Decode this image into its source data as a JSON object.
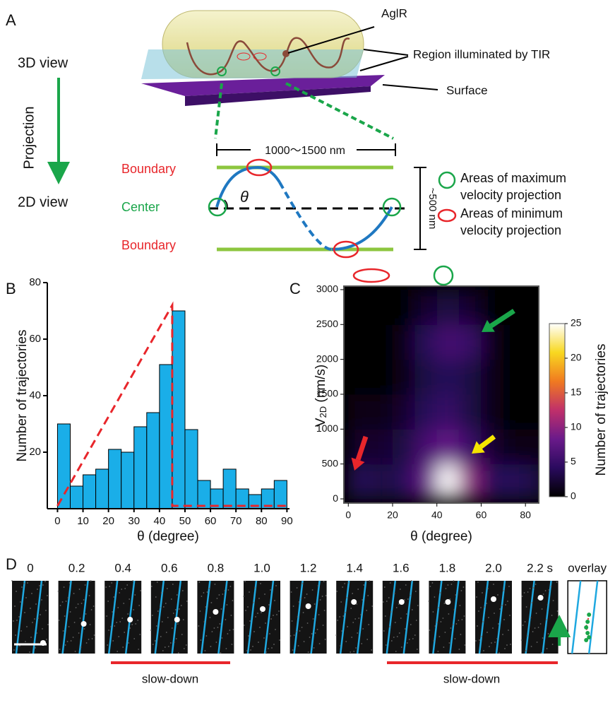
{
  "panel_a": {
    "label": "A",
    "view_3d": "3D view",
    "projection": "Projection",
    "view_2d": "2D view",
    "aglr": "AglR",
    "tir": "Region illuminated by TIR",
    "surface": "Surface",
    "width": "1000～1500 nm",
    "boundary_top": "Boundary",
    "center": "Center",
    "boundary_bottom": "Boundary",
    "theta": "θ",
    "height": "~500 nm",
    "legend": [
      {
        "lines": [
          "Areas of maximum",
          "velocity projection"
        ]
      },
      {
        "lines": [
          "Areas of minimum",
          "velocity projection"
        ]
      }
    ]
  },
  "chart_data": [
    {
      "type": "histogram",
      "panel": "B",
      "y_label": "Number of trajectories",
      "x_label": "θ (degree)",
      "bins": [
        0,
        5,
        10,
        15,
        20,
        25,
        30,
        35,
        40,
        45,
        50,
        55,
        60,
        65,
        70,
        75,
        80,
        85,
        90
      ],
      "values": [
        30,
        8,
        12,
        14,
        21,
        20,
        29,
        34,
        51,
        70,
        28,
        10,
        7,
        14,
        7,
        5,
        7,
        10
      ],
      "color": "#1aaee8",
      "xlim": [
        -4,
        91
      ],
      "xticks": [
        0,
        10,
        20,
        30,
        40,
        50,
        60,
        70,
        80,
        90
      ],
      "ylim": [
        0,
        80
      ],
      "yticks": [
        20,
        40,
        60,
        80
      ],
      "overlay": {
        "x": [
          0,
          45,
          45,
          90
        ],
        "values": [
          1,
          72,
          1,
          1
        ],
        "color": "#e8262b"
      }
    },
    {
      "type": "heatmap",
      "panel": "C",
      "x_label": "θ (degree)",
      "y_label": "V",
      "y_label_sub": "2D",
      "y_label_unit": "(nm/s)",
      "x": [
        5,
        15,
        25,
        35,
        45,
        55,
        65,
        75,
        85
      ],
      "y": [
        250,
        750,
        1250,
        1750,
        2250,
        2750
      ],
      "z": [
        [
          4,
          3,
          4,
          8,
          25,
          10,
          4,
          4,
          3
        ],
        [
          2,
          2,
          3,
          6,
          8,
          5,
          2,
          1,
          1
        ],
        [
          1,
          1,
          2,
          4,
          5,
          3,
          1,
          0,
          0
        ],
        [
          0,
          0,
          1,
          3,
          4,
          3,
          1,
          0,
          0
        ],
        [
          0,
          0,
          1,
          4,
          6,
          5,
          1,
          0,
          0
        ],
        [
          0,
          0,
          0,
          2,
          3,
          2,
          0,
          0,
          0
        ]
      ],
      "xlim": [
        -2,
        86
      ],
      "xticks": [
        0,
        20,
        40,
        60,
        80
      ],
      "ylim": [
        -60,
        3050
      ],
      "yticks": [
        0,
        500,
        1000,
        1500,
        2000,
        2500,
        3000
      ],
      "colormap": [
        "#000000",
        "#2a0a5e",
        "#6a1a8a",
        "#c0306a",
        "#f07a20",
        "#f8d820",
        "#ffffff"
      ],
      "colorbar": {
        "lim": [
          0,
          25
        ],
        "ticks": [
          0,
          5,
          10,
          15,
          20,
          25
        ],
        "label": "Number of trajectories"
      }
    }
  ],
  "panel_d": {
    "label": "D",
    "frame_labels": [
      "0",
      "0.2",
      "0.4",
      "0.6",
      "0.8",
      "1.0",
      "1.2",
      "1.4",
      "1.6",
      "1.8",
      "2.0",
      "2.2 s",
      "overlay"
    ],
    "slow_down": [
      "slow-down",
      "slow-down"
    ]
  }
}
